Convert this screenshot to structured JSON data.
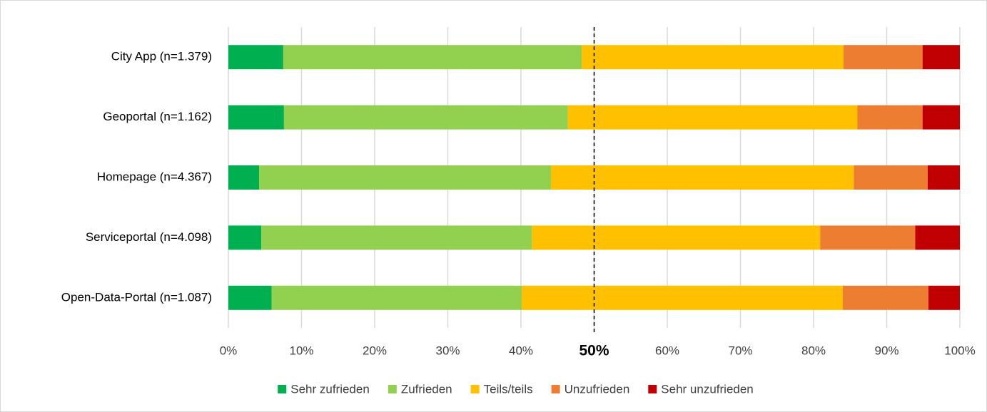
{
  "chart_data": {
    "type": "stacked_barh",
    "categories": [
      "City App (n=1.379)",
      "Geoportal (n=1.162)",
      "Homepage (n=4.367)",
      "Serviceportal (n=4.098)",
      "Open-Data-Portal (n=1.087)"
    ],
    "series": [
      {
        "name": "Sehr zufrieden",
        "color": "#00b050",
        "values": [
          7.5,
          7.6,
          4.2,
          4.5,
          5.9
        ]
      },
      {
        "name": "Zufrieden",
        "color": "#92d050",
        "values": [
          40.8,
          38.8,
          39.9,
          37.0,
          34.2
        ]
      },
      {
        "name": "Teils/teils",
        "color": "#ffc000",
        "values": [
          35.8,
          39.6,
          41.4,
          39.4,
          43.9
        ]
      },
      {
        "name": "Unzufrieden",
        "color": "#ed7d31",
        "values": [
          10.8,
          8.9,
          10.1,
          13.0,
          11.7
        ]
      },
      {
        "name": "Sehr unzufrieden",
        "color": "#c00000",
        "values": [
          5.1,
          5.1,
          4.4,
          6.1,
          4.3
        ]
      }
    ],
    "xlim": [
      0,
      100
    ],
    "xticks": [
      {
        "value": 0,
        "label": "0%"
      },
      {
        "value": 10,
        "label": "10%"
      },
      {
        "value": 20,
        "label": "20%"
      },
      {
        "value": 30,
        "label": "30%"
      },
      {
        "value": 40,
        "label": "40%"
      },
      {
        "value": 50,
        "label": "50%"
      },
      {
        "value": 60,
        "label": "60%"
      },
      {
        "value": 70,
        "label": "70%"
      },
      {
        "value": 80,
        "label": "80%"
      },
      {
        "value": 90,
        "label": "90%"
      },
      {
        "value": 100,
        "label": "100%"
      }
    ],
    "reference_line": 50,
    "grid": true,
    "legend": "bottom"
  }
}
